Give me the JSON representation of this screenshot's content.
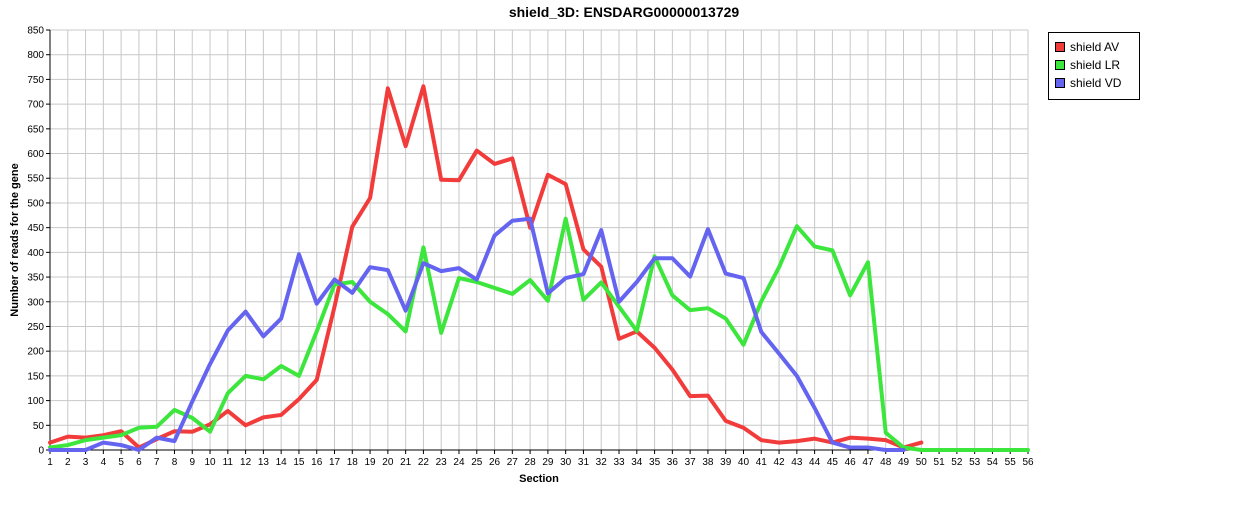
{
  "chart_data": {
    "type": "line",
    "title": "shield_3D: ENSDARG00000013729",
    "xlabel": "Section",
    "ylabel": "Number of reads for the gene",
    "xlim": [
      1,
      56
    ],
    "ylim": [
      0,
      850
    ],
    "yticks": [
      0,
      50,
      100,
      150,
      200,
      250,
      300,
      350,
      400,
      450,
      500,
      550,
      600,
      650,
      700,
      750,
      800,
      850
    ],
    "xticks": [
      1,
      2,
      3,
      4,
      5,
      6,
      7,
      8,
      9,
      10,
      11,
      12,
      13,
      14,
      15,
      16,
      17,
      18,
      19,
      20,
      21,
      22,
      23,
      24,
      25,
      26,
      27,
      28,
      29,
      30,
      31,
      32,
      33,
      34,
      35,
      36,
      37,
      38,
      39,
      40,
      41,
      42,
      43,
      44,
      45,
      46,
      47,
      48,
      49,
      50,
      51,
      52,
      53,
      54,
      55,
      56
    ],
    "grid": true,
    "legend_position": "top-right",
    "series": [
      {
        "name": "shield AV",
        "color": "#f23c3c",
        "x": [
          1,
          2,
          3,
          4,
          5,
          6,
          7,
          8,
          9,
          10,
          11,
          12,
          13,
          14,
          15,
          16,
          17,
          18,
          19,
          20,
          21,
          22,
          23,
          24,
          25,
          26,
          27,
          28,
          29,
          30,
          31,
          32,
          33,
          34,
          35,
          36,
          37,
          38,
          39,
          40,
          41,
          42,
          43,
          44,
          45,
          46,
          47,
          48,
          49,
          50
        ],
        "values": [
          15,
          27,
          25,
          30,
          38,
          5,
          22,
          38,
          37,
          52,
          79,
          50,
          66,
          71,
          103,
          142,
          290,
          452,
          510,
          732,
          615,
          736,
          547,
          546,
          606,
          579,
          590,
          450,
          557,
          538,
          406,
          371,
          225,
          240,
          207,
          163,
          109,
          110,
          59,
          45,
          20,
          15,
          18,
          23,
          15,
          25,
          23,
          20,
          5,
          15
        ]
      },
      {
        "name": "shield LR",
        "color": "#3ce63c",
        "x": [
          1,
          2,
          3,
          4,
          5,
          6,
          7,
          8,
          9,
          10,
          11,
          12,
          13,
          14,
          15,
          16,
          17,
          18,
          19,
          20,
          21,
          22,
          23,
          24,
          25,
          26,
          27,
          28,
          29,
          30,
          31,
          32,
          33,
          34,
          35,
          36,
          37,
          38,
          39,
          40,
          41,
          42,
          43,
          44,
          45,
          46,
          47,
          48,
          49,
          50,
          51,
          52,
          53,
          54,
          55,
          56
        ],
        "values": [
          5,
          10,
          20,
          25,
          30,
          45,
          47,
          81,
          65,
          37,
          115,
          150,
          143,
          170,
          150,
          240,
          335,
          340,
          300,
          275,
          240,
          410,
          237,
          348,
          340,
          328,
          316,
          344,
          302,
          468,
          304,
          339,
          290,
          241,
          392,
          313,
          283,
          287,
          266,
          213,
          301,
          370,
          453,
          412,
          404,
          313,
          380,
          35,
          5,
          0,
          0,
          0,
          0,
          0,
          0,
          0
        ]
      },
      {
        "name": "shield VD",
        "color": "#6464f0",
        "x": [
          1,
          2,
          3,
          4,
          5,
          6,
          7,
          8,
          9,
          10,
          11,
          12,
          13,
          14,
          15,
          16,
          17,
          18,
          19,
          20,
          21,
          22,
          23,
          24,
          25,
          26,
          27,
          28,
          29,
          30,
          31,
          32,
          33,
          34,
          35,
          36,
          37,
          38,
          39,
          40,
          41,
          42,
          43,
          44,
          45,
          46,
          47,
          48,
          49
        ],
        "values": [
          0,
          0,
          0,
          15,
          10,
          0,
          25,
          18,
          98,
          174,
          242,
          280,
          230,
          266,
          396,
          296,
          345,
          318,
          370,
          364,
          282,
          378,
          362,
          368,
          345,
          434,
          464,
          468,
          317,
          348,
          356,
          445,
          300,
          340,
          388,
          388,
          351,
          447,
          357,
          348,
          239,
          195,
          150,
          85,
          15,
          5,
          5,
          0,
          0
        ]
      }
    ]
  }
}
